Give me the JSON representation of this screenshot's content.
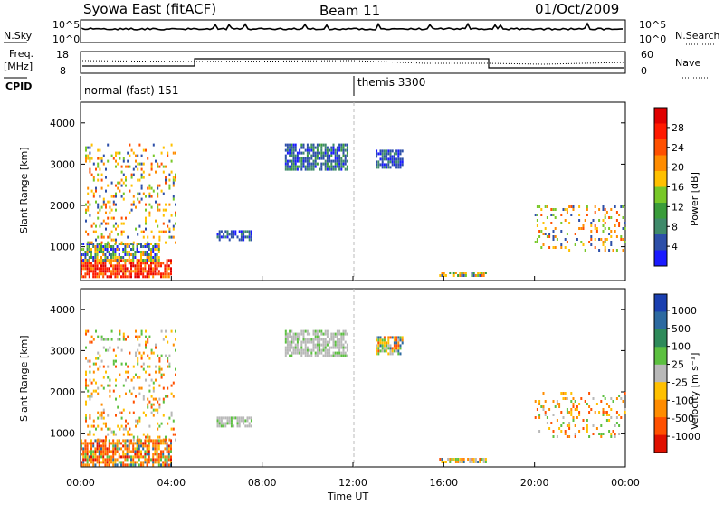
{
  "header": {
    "station": "Syowa East (fitACF)",
    "beam": "Beam 11",
    "date": "01/Oct/2009"
  },
  "side_labels": {
    "nsky": "N.Sky",
    "freq": "Freq.",
    "mhz": "[MHz]",
    "cpid": "CPID",
    "nsearch": "N.Search",
    "nave": "Nave"
  },
  "top_ticks": {
    "sky_hi": "10^5",
    "sky_lo": "10^0",
    "search_hi": "10^5",
    "search_lo": "10^0",
    "freq_hi": "18",
    "freq_lo": "8",
    "nave_hi": "60",
    "nave_lo": "0"
  },
  "cpid_labels": {
    "first": "normal (fast) 151",
    "second": "themis 3300"
  },
  "axis": {
    "ylabel": "Slant Range [km]",
    "xlabel": "Time UT",
    "power_label": "Power [dB]",
    "velocity_label": "Velocity [m s⁻¹]"
  },
  "chart_data": [
    {
      "type": "heatmap",
      "name": "power",
      "x_unit": "hours UT",
      "xlim": [
        0,
        24
      ],
      "ylim": [
        180,
        4500
      ],
      "xticks": [
        "00:00",
        "04:00",
        "08:00",
        "12:00",
        "16:00",
        "20:00",
        "00:00"
      ],
      "yticks": [
        1000,
        2000,
        3000,
        4000
      ],
      "colorbar": {
        "label": "Power [dB]",
        "ticks": [
          4,
          8,
          12,
          16,
          20,
          24,
          28
        ],
        "colors": [
          "#1a1aff",
          "#2d4fa8",
          "#3f8a6a",
          "#3a9c3a",
          "#78c828",
          "#ffc000",
          "#ff8c00",
          "#ff5000",
          "#ff1a00",
          "#e00000"
        ]
      },
      "regions": [
        {
          "t": [
            0.0,
            4.0
          ],
          "r": [
            300,
            700
          ],
          "level": "high"
        },
        {
          "t": [
            0.0,
            3.5
          ],
          "r": [
            700,
            1100
          ],
          "level": "mid"
        },
        {
          "t": [
            0.2,
            4.2
          ],
          "r": [
            1100,
            3500
          ],
          "level": "sparse"
        },
        {
          "t": [
            6.0,
            7.5
          ],
          "r": [
            1200,
            1400
          ],
          "level": "low"
        },
        {
          "t": [
            9.0,
            11.8
          ],
          "r": [
            2900,
            3500
          ],
          "level": "low-green"
        },
        {
          "t": [
            13.0,
            14.2
          ],
          "r": [
            2950,
            3350
          ],
          "level": "low"
        },
        {
          "t": [
            15.8,
            17.9
          ],
          "r": [
            280,
            400
          ],
          "level": "mixed"
        },
        {
          "t": [
            20.0,
            24.0
          ],
          "r": [
            900,
            2000
          ],
          "level": "sparse"
        }
      ]
    },
    {
      "type": "heatmap",
      "name": "velocity",
      "x_unit": "hours UT",
      "xlim": [
        0,
        24
      ],
      "ylim": [
        180,
        4500
      ],
      "xticks": [
        "00:00",
        "04:00",
        "08:00",
        "12:00",
        "16:00",
        "20:00",
        "00:00"
      ],
      "yticks": [
        1000,
        2000,
        3000,
        4000
      ],
      "colorbar": {
        "label": "Velocity [m s⁻¹]",
        "ticks": [
          1000,
          500,
          100,
          25,
          -25,
          -100,
          -500,
          -1000
        ],
        "colors": [
          "#1a3fb0",
          "#2d6aa0",
          "#2e8a5a",
          "#5cc040",
          "#b8b8b8",
          "#ffc000",
          "#ff8c00",
          "#ff5000",
          "#e01000"
        ]
      },
      "regions": [
        {
          "t": [
            0.0,
            4.0
          ],
          "r": [
            250,
            850
          ],
          "level": "strong-negative"
        },
        {
          "t": [
            0.2,
            4.2
          ],
          "r": [
            850,
            3500
          ],
          "level": "sparse-negative"
        },
        {
          "t": [
            6.0,
            7.5
          ],
          "r": [
            1200,
            1400
          ],
          "level": "ground-scatter"
        },
        {
          "t": [
            9.0,
            11.8
          ],
          "r": [
            2900,
            3500
          ],
          "level": "ground-scatter"
        },
        {
          "t": [
            13.0,
            14.2
          ],
          "r": [
            2950,
            3350
          ],
          "level": "mixed"
        },
        {
          "t": [
            15.8,
            17.9
          ],
          "r": [
            280,
            400
          ],
          "level": "mixed"
        },
        {
          "t": [
            20.0,
            24.0
          ],
          "r": [
            900,
            2000
          ],
          "level": "sparse-negative"
        }
      ]
    }
  ]
}
